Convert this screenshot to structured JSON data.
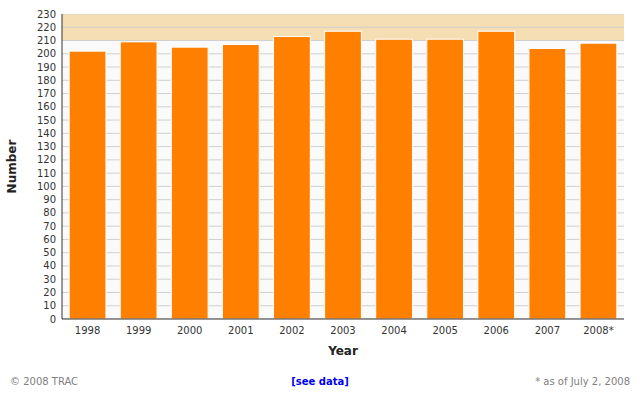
{
  "chart_data": {
    "type": "bar",
    "categories": [
      "1998",
      "1999",
      "2000",
      "2001",
      "2002",
      "2003",
      "2004",
      "2005",
      "2006",
      "2007",
      "2008*"
    ],
    "values": [
      202,
      209,
      205,
      207,
      213,
      217,
      211,
      211,
      217,
      204,
      208
    ],
    "color": "#FF8000",
    "x_label": "Year",
    "y_label": "Number",
    "ylim": [
      0,
      230
    ],
    "yticks": [
      0,
      10,
      20,
      30,
      40,
      50,
      60,
      70,
      80,
      90,
      100,
      110,
      120,
      130,
      140,
      150,
      160,
      170,
      180,
      190,
      200,
      210,
      220,
      230
    ],
    "band": [
      210,
      230
    ],
    "grid": true,
    "annotations": [
      "© 2008 TRAC",
      "[see data]",
      "* as of July 2, 2008"
    ]
  }
}
